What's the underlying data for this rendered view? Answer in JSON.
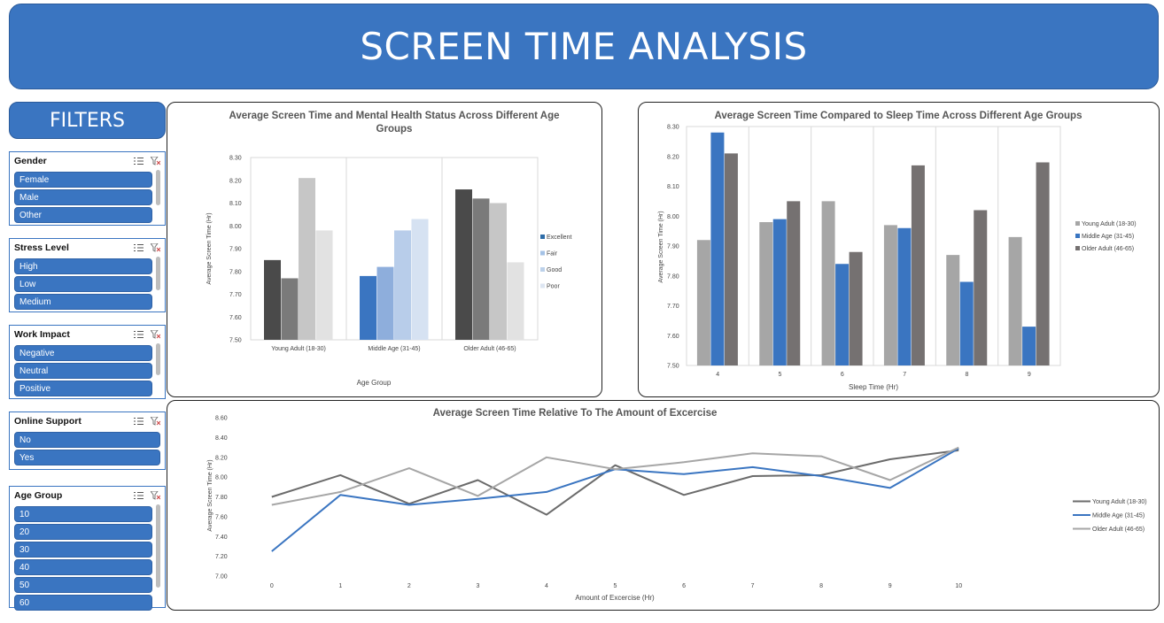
{
  "header": {
    "title": "SCREEN TIME ANALYSIS"
  },
  "filters": {
    "title": "FILTERS",
    "slicers": [
      {
        "title": "Gender",
        "items": [
          "Female",
          "Male",
          "Other"
        ]
      },
      {
        "title": "Stress Level",
        "items": [
          "High",
          "Low",
          "Medium"
        ]
      },
      {
        "title": "Work Impact",
        "items": [
          "Negative",
          "Neutral",
          "Positive"
        ]
      },
      {
        "title": "Online Support",
        "items": [
          "No",
          "Yes"
        ]
      },
      {
        "title": "Age Group",
        "items": [
          "10",
          "20",
          "30",
          "40",
          "50",
          "60"
        ]
      }
    ]
  },
  "chart_data": [
    {
      "type": "bar",
      "title": "Average Screen Time and Mental Health Status Across Different Age Groups",
      "title_lines": [
        "Average Screen Time and Mental Health Status Across Different Age",
        "Groups"
      ],
      "xlabel": "Age Group",
      "ylabel": "Average Screen Time (Hr)",
      "ylim": [
        7.5,
        8.3
      ],
      "yticks": [
        "7.50",
        "7.60",
        "7.70",
        "7.80",
        "7.90",
        "8.00",
        "8.10",
        "8.20",
        "8.30"
      ],
      "categories": [
        "Young Adult (18-30)",
        "Middle Age (31-45)",
        "Older Adult (46-65)"
      ],
      "series": [
        {
          "name": "Excellent",
          "values": [
            7.85,
            7.78,
            8.16
          ]
        },
        {
          "name": "Fair",
          "values": [
            7.77,
            7.82,
            8.12
          ]
        },
        {
          "name": "Good",
          "values": [
            8.21,
            7.98,
            8.1
          ]
        },
        {
          "name": "Poor",
          "values": [
            7.98,
            8.03,
            7.84
          ]
        }
      ],
      "colors": [
        [
          "#4a4a4a",
          "#7a7a7a",
          "#c6c6c6",
          "#e2e2e2"
        ],
        [
          "#3a75c1",
          "#8eaedc",
          "#b8cdea",
          "#d6e2f2"
        ],
        [
          "#4a4a4a",
          "#7a7a7a",
          "#c6c6c6",
          "#e2e2e2"
        ]
      ],
      "legend_colors": [
        "#2e6da8",
        "#a4c2e6",
        "#bcd1ea",
        "#dde6f2"
      ],
      "legend": "right",
      "grid": "vertical"
    },
    {
      "type": "bar",
      "title": "Average Screen Time Compared to Sleep Time Across Different Age Groups",
      "xlabel": "Sleep Time (Hr)",
      "ylabel": "Average Screen Time (Hr)",
      "ylim": [
        7.5,
        8.3
      ],
      "yticks": [
        "7.50",
        "7.60",
        "7.70",
        "7.80",
        "7.90",
        "8.00",
        "8.10",
        "8.20",
        "8.30"
      ],
      "categories": [
        "4",
        "5",
        "6",
        "7",
        "8",
        "9"
      ],
      "series": [
        {
          "name": "Young Adult (18-30)",
          "values": [
            7.92,
            7.98,
            8.05,
            7.97,
            7.87,
            7.93
          ],
          "color": "#a6a6a6"
        },
        {
          "name": "Middle Age (31-45)",
          "values": [
            8.28,
            7.99,
            7.84,
            7.96,
            7.78,
            7.63
          ],
          "color": "#3a75c1"
        },
        {
          "name": "Older Adult (46-65)",
          "values": [
            8.21,
            8.05,
            7.88,
            8.17,
            8.02,
            8.18
          ],
          "color": "#757171"
        }
      ],
      "legend": "right",
      "grid": "vertical"
    },
    {
      "type": "line",
      "title": "Average Screen Time Relative To The Amount of Excercise",
      "xlabel": "Amount of Excercise (Hr)",
      "ylabel": "Average Screen Time (Hr)",
      "ylim": [
        7.0,
        8.6
      ],
      "yticks": [
        "7.00",
        "7.20",
        "7.40",
        "7.60",
        "7.80",
        "8.00",
        "8.20",
        "8.40",
        "8.60"
      ],
      "x": [
        "0",
        "1",
        "2",
        "3",
        "4",
        "5",
        "6",
        "7",
        "8",
        "9",
        "10"
      ],
      "series": [
        {
          "name": "Young Adult (18-30)",
          "values": [
            7.8,
            8.02,
            7.73,
            7.97,
            7.62,
            8.12,
            7.82,
            8.01,
            8.02,
            8.18,
            8.27
          ],
          "color": "#6b6b6b"
        },
        {
          "name": "Middle Age (31-45)",
          "values": [
            7.25,
            7.82,
            7.72,
            7.78,
            7.85,
            8.08,
            8.03,
            8.1,
            8.01,
            7.89,
            8.29
          ],
          "color": "#3a75c1"
        },
        {
          "name": "Older Adult (46-65)",
          "values": [
            7.72,
            7.85,
            8.09,
            7.81,
            8.2,
            8.08,
            8.15,
            8.24,
            8.21,
            7.97,
            8.3
          ],
          "color": "#a6a6a6"
        }
      ],
      "legend": "right",
      "grid": "none"
    }
  ]
}
